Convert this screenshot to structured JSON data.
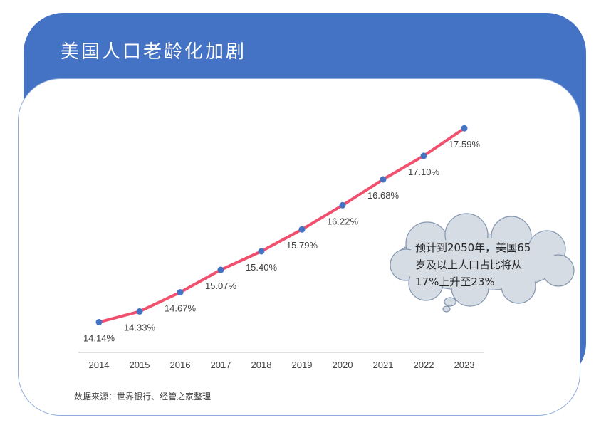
{
  "title": "美国人口老龄化加剧",
  "source": "数据来源：世界银行、经管之家整理",
  "callout": {
    "lines": [
      "预计到2050年，美国65",
      "岁及以上人口占比将从",
      "17%上升至23%"
    ]
  },
  "colors": {
    "panel": "#4472c4",
    "line": "#f0506e",
    "marker": "#4472c4",
    "cloud": "#d6dce4"
  },
  "chart_data": {
    "type": "line",
    "title": "美国人口老龄化加剧",
    "xlabel": "",
    "ylabel": "",
    "categories": [
      "2014",
      "2015",
      "2016",
      "2017",
      "2018",
      "2019",
      "2020",
      "2021",
      "2022",
      "2023"
    ],
    "series": [
      {
        "name": "65岁及以上人口占比",
        "values": [
          14.14,
          14.33,
          14.67,
          15.07,
          15.4,
          15.79,
          16.22,
          16.68,
          17.1,
          17.59
        ],
        "labels": [
          "14.14%",
          "14.33%",
          "14.67%",
          "15.07%",
          "15.40%",
          "15.79%",
          "16.22%",
          "16.68%",
          "17.10%",
          "17.59%"
        ]
      }
    ],
    "ylim": [
      13.6,
      18.1
    ],
    "grid": false,
    "legend": "none"
  }
}
